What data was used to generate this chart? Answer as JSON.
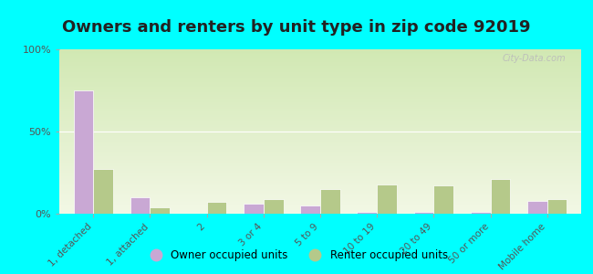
{
  "title": "Owners and renters by unit type in zip code 92019",
  "categories": [
    "1, detached",
    "1, attached",
    "2",
    "3 or 4",
    "5 to 9",
    "10 to 19",
    "20 to 49",
    "50 or more",
    "Mobile home"
  ],
  "owner_values": [
    75,
    10,
    0,
    6,
    5,
    1,
    1,
    1,
    8
  ],
  "renter_values": [
    27,
    4,
    7,
    9,
    15,
    18,
    17,
    21,
    9
  ],
  "owner_color": "#c9a8d4",
  "renter_color": "#b5c98a",
  "background_outer": "#00ffff",
  "ylim": [
    0,
    100
  ],
  "yticks": [
    0,
    50,
    100
  ],
  "ytick_labels": [
    "0%",
    "50%",
    "100%"
  ],
  "title_fontsize": 13,
  "legend_owner": "Owner occupied units",
  "legend_renter": "Renter occupied units",
  "watermark": "City-Data.com"
}
